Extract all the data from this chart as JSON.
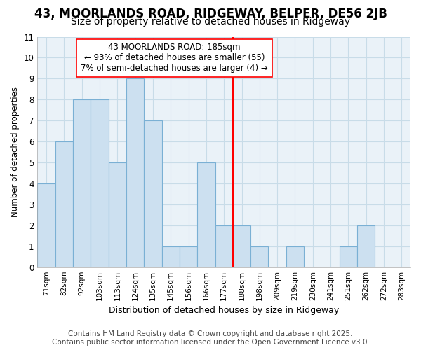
{
  "title": "43, MOORLANDS ROAD, RIDGEWAY, BELPER, DE56 2JB",
  "subtitle": "Size of property relative to detached houses in Ridgeway",
  "xlabel": "Distribution of detached houses by size in Ridgeway",
  "ylabel": "Number of detached properties",
  "categories": [
    "71sqm",
    "82sqm",
    "92sqm",
    "103sqm",
    "113sqm",
    "124sqm",
    "135sqm",
    "145sqm",
    "156sqm",
    "166sqm",
    "177sqm",
    "188sqm",
    "198sqm",
    "209sqm",
    "219sqm",
    "230sqm",
    "241sqm",
    "251sqm",
    "262sqm",
    "272sqm",
    "283sqm"
  ],
  "values": [
    4,
    6,
    8,
    8,
    5,
    9,
    7,
    1,
    1,
    5,
    2,
    2,
    1,
    0,
    1,
    0,
    0,
    1,
    2,
    0,
    0
  ],
  "bar_color": "#cce0f0",
  "bar_edgecolor": "#7ab0d4",
  "redline_index": 11,
  "redline_label": "43 MOORLANDS ROAD: 185sqm",
  "annotation_line2": "← 93% of detached houses are smaller (55)",
  "annotation_line3": "7% of semi-detached houses are larger (4) →",
  "ylim": [
    0,
    11
  ],
  "yticks": [
    0,
    1,
    2,
    3,
    4,
    5,
    6,
    7,
    8,
    9,
    10,
    11
  ],
  "footer": "Contains HM Land Registry data © Crown copyright and database right 2025.\nContains public sector information licensed under the Open Government Licence v3.0.",
  "bg_color": "#ffffff",
  "plot_bg_color": "#eaf2f8",
  "grid_color": "#c8dce8",
  "title_fontsize": 12,
  "subtitle_fontsize": 10,
  "annotation_fontsize": 8.5,
  "footer_fontsize": 7.5
}
